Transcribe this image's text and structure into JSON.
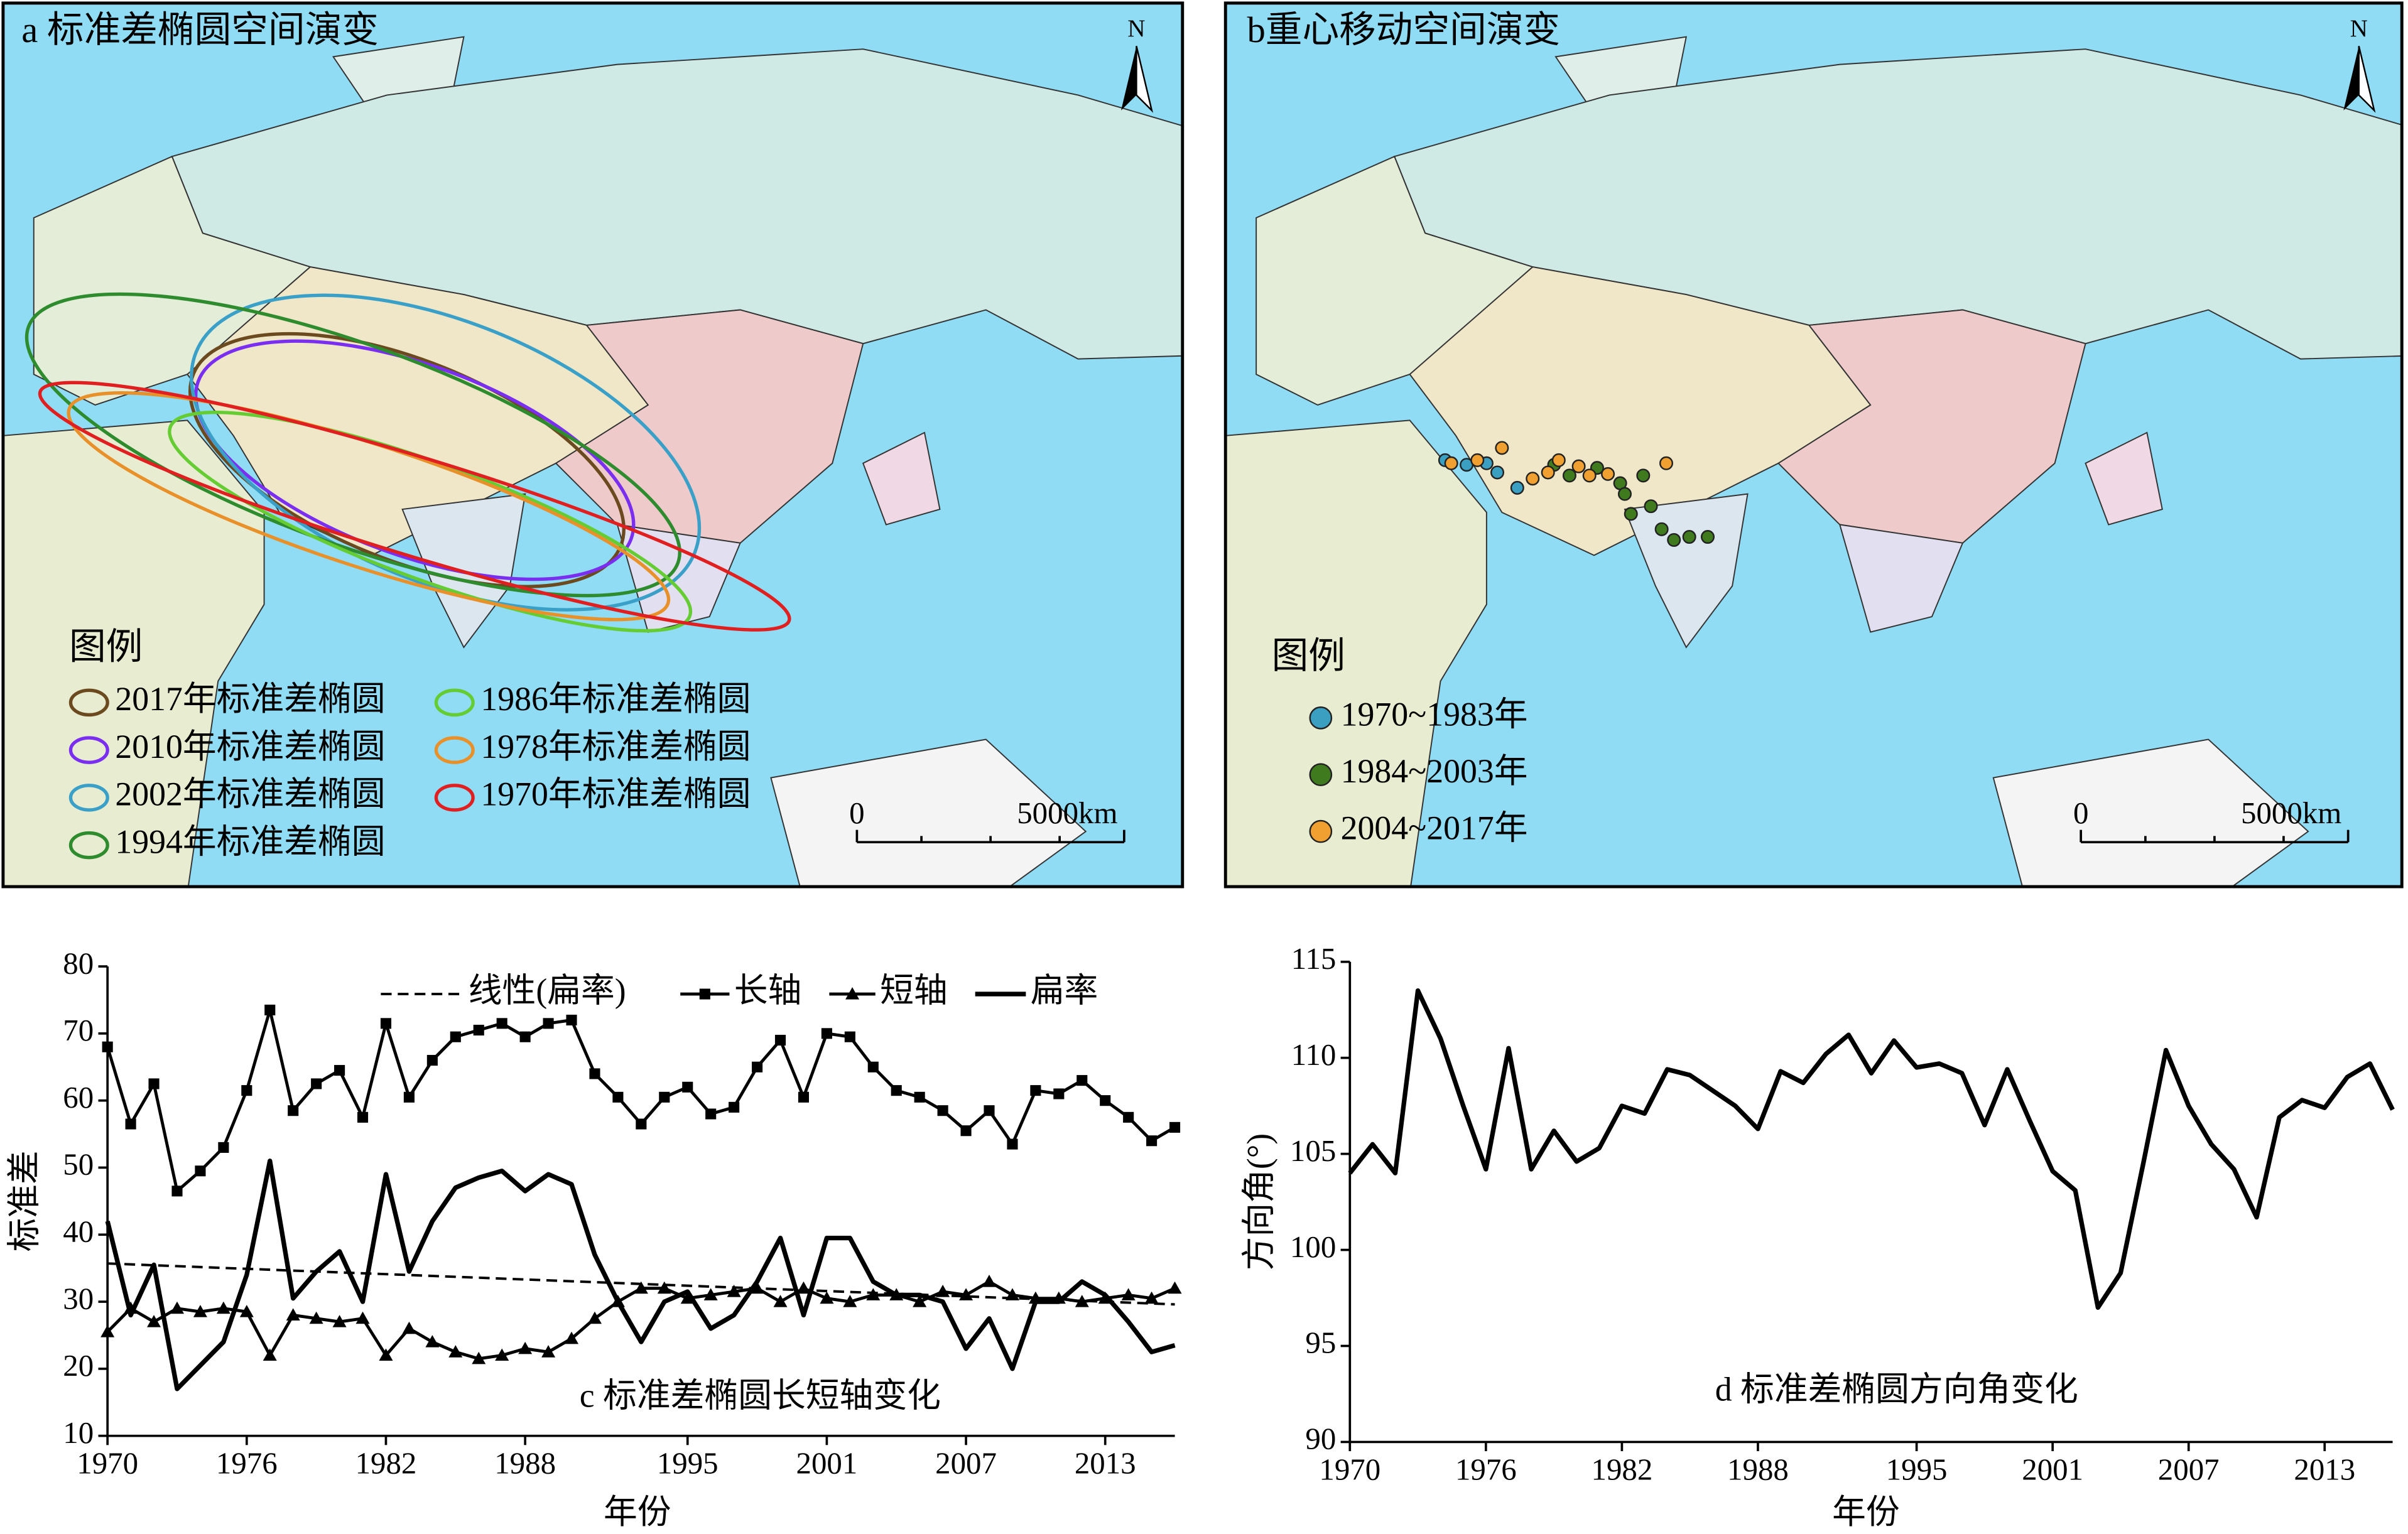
{
  "map_a": {
    "title": "a 标准差椭圆空间演变",
    "north": "N",
    "legend_title": "图例",
    "legend": [
      {
        "name": "2017年标准差椭圆",
        "color": "#6b4a1f"
      },
      {
        "name": "2010年标准差椭圆",
        "color": "#7a2ff0"
      },
      {
        "name": "2002年标准差椭圆",
        "color": "#3aa0c8"
      },
      {
        "name": "1994年标准差椭圆",
        "color": "#2e8b2e"
      },
      {
        "name": "1986年标准差椭圆",
        "color": "#66cc33"
      },
      {
        "name": "1978年标准差椭圆",
        "color": "#e8902a"
      },
      {
        "name": "1970年标准差椭圆",
        "color": "#e02020"
      }
    ],
    "scale": [
      "0",
      "5000km"
    ]
  },
  "map_b": {
    "title": "b重心移动空间演变",
    "north": "N",
    "legend_title": "图例",
    "legend": [
      {
        "name": "1970~1983年",
        "color": "#3a9fc0"
      },
      {
        "name": "1984~2003年",
        "color": "#3f7a1f"
      },
      {
        "name": "2004~2017年",
        "color": "#f0a030"
      }
    ],
    "scale": [
      "0",
      "5000km"
    ]
  },
  "chart_data": [
    {
      "type": "line",
      "title": "c 标准差椭圆长短轴变化",
      "xlabel": "年份",
      "ylabel": "标准差",
      "x": [
        1970,
        1971,
        1972,
        1973,
        1974,
        1975,
        1976,
        1977,
        1978,
        1979,
        1980,
        1981,
        1982,
        1983,
        1984,
        1985,
        1986,
        1987,
        1988,
        1989,
        1990,
        1991,
        1992,
        1993,
        1994,
        1995,
        1996,
        1997,
        1998,
        1999,
        2000,
        2001,
        2002,
        2003,
        2004,
        2005,
        2006,
        2007,
        2008,
        2009,
        2010,
        2011,
        2012,
        2013,
        2014,
        2015,
        2016
      ],
      "xlim": [
        1970,
        2016
      ],
      "xticks": [
        1970,
        1976,
        1982,
        1988,
        1995,
        2001,
        2007,
        2013
      ],
      "ylim": [
        10,
        80
      ],
      "yticks": [
        10,
        20,
        30,
        40,
        50,
        60,
        70,
        80
      ],
      "series": [
        {
          "name": "线性(扁率)",
          "color": "#000000",
          "dash": true,
          "x": [
            1970,
            2016
          ],
          "values": [
            35.7,
            29.6
          ]
        },
        {
          "name": "长轴",
          "color": "#000000",
          "marker": "square",
          "values": [
            68,
            56.5,
            62.5,
            46.5,
            49.5,
            53,
            61.5,
            73.5,
            58.5,
            62.5,
            64.5,
            57.5,
            71.5,
            60.5,
            66,
            69.5,
            70.5,
            71.5,
            69.5,
            71.5,
            72,
            64,
            60.5,
            56.5,
            60.5,
            62,
            58,
            59,
            65,
            69,
            60.5,
            70,
            69.5,
            65,
            61.5,
            60.5,
            58.5,
            55.5,
            58.5,
            53.5,
            61.5,
            61,
            63,
            60,
            57.5,
            54,
            56
          ]
        },
        {
          "name": "短轴",
          "color": "#000000",
          "marker": "triangle",
          "values": [
            25.5,
            29,
            27,
            29,
            28.5,
            29,
            28.5,
            22,
            28,
            27.5,
            27,
            27.5,
            22,
            26,
            24,
            22.5,
            21.5,
            22,
            23,
            22.5,
            24.5,
            27.5,
            30,
            32,
            32,
            30.5,
            31,
            31.5,
            32,
            30,
            32,
            30.5,
            30,
            31,
            31,
            30,
            31.5,
            31,
            33,
            31,
            30.5,
            30.5,
            30,
            30.5,
            31,
            30.5,
            32
          ]
        },
        {
          "name": "扁率",
          "color": "#000000",
          "values": [
            42,
            28,
            35.5,
            17,
            20.5,
            24,
            34,
            51,
            30.5,
            34.5,
            37.5,
            30,
            49,
            34.5,
            42,
            47,
            48.5,
            49.5,
            46.5,
            49,
            47.5,
            37,
            30,
            24,
            30,
            31.5,
            26,
            28,
            33,
            39.5,
            28,
            39.5,
            39.5,
            33,
            31,
            31,
            30,
            23,
            27.5,
            20,
            30,
            30,
            33,
            31,
            27,
            22.5,
            23.5
          ]
        }
      ]
    },
    {
      "type": "line",
      "title": "d 标准差椭圆方向角变化",
      "xlabel": "年份",
      "ylabel": "方向角(°)",
      "x": [
        1970,
        1971,
        1972,
        1973,
        1974,
        1975,
        1976,
        1977,
        1978,
        1979,
        1980,
        1981,
        1982,
        1983,
        1984,
        1985,
        1986,
        1987,
        1988,
        1989,
        1990,
        1991,
        1992,
        1993,
        1994,
        1995,
        1996,
        1997,
        1998,
        1999,
        2000,
        2001,
        2002,
        2003,
        2004,
        2005,
        2006,
        2007,
        2008,
        2009,
        2010,
        2011,
        2012,
        2013,
        2014,
        2015,
        2016
      ],
      "xlim": [
        1970,
        2016
      ],
      "xticks": [
        1970,
        1976,
        1982,
        1988,
        1995,
        2001,
        2007,
        2013
      ],
      "ylim": [
        90,
        115
      ],
      "yticks": [
        90,
        95,
        100,
        105,
        110,
        115
      ],
      "series": [
        {
          "color": "#000000",
          "values": [
            104,
            105.5,
            104,
            113.5,
            111,
            107.5,
            104.2,
            110.5,
            104.2,
            106.2,
            104.6,
            105.3,
            107.5,
            107.1,
            109.4,
            109.1,
            108.3,
            107.5,
            106.3,
            109.3,
            108.7,
            110.2,
            111.2,
            109.2,
            110.9,
            109.5,
            109.7,
            109.2,
            106.5,
            109.4,
            106.7,
            104.1,
            103.1,
            97,
            98.8,
            104.5,
            110.4,
            107.5,
            105.5,
            104.2,
            101.7,
            106.9,
            107.8,
            107.4,
            109,
            109.7,
            107.3
          ]
        }
      ]
    }
  ]
}
